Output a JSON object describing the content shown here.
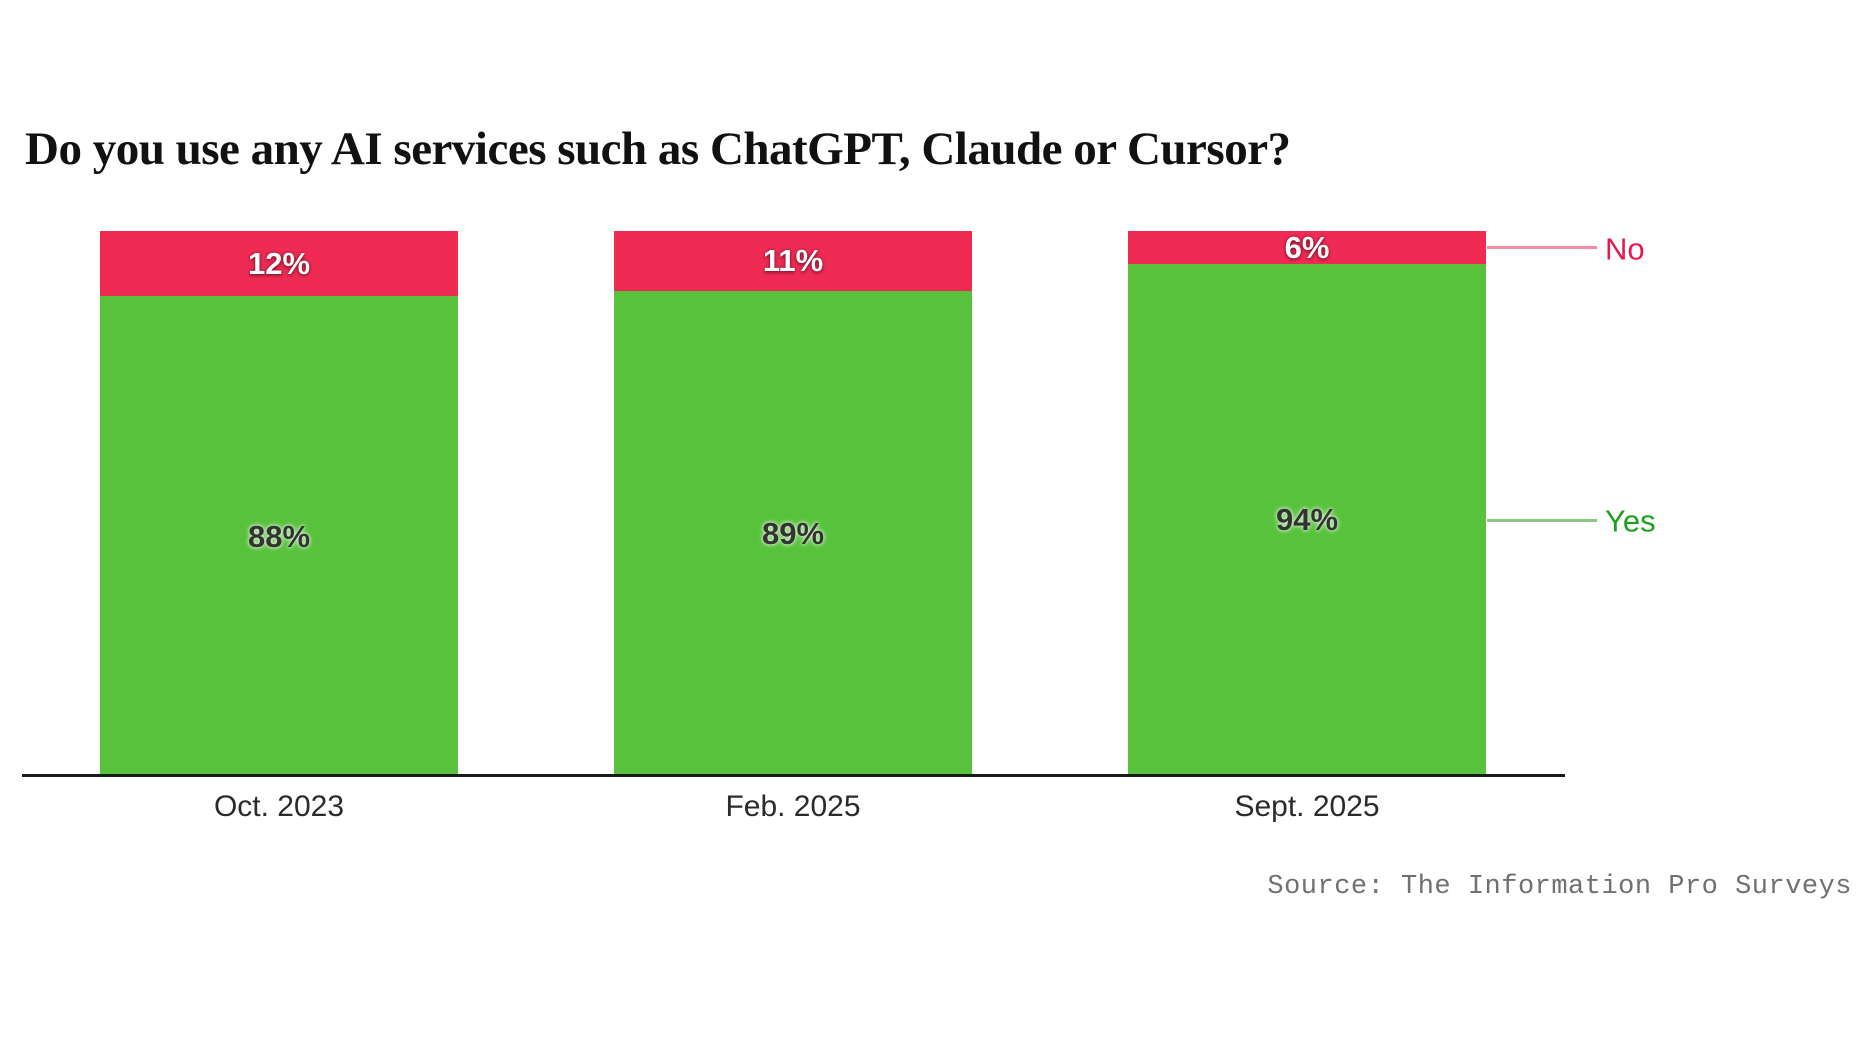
{
  "title": "Do you use any AI services such as ChatGPT, Claude or Cursor?",
  "source": "Source: The Information Pro Surveys",
  "legend": {
    "no_label": "No",
    "yes_label": "Yes"
  },
  "colors": {
    "yes_bar": "#58c23d",
    "no_bar": "#ef2b54",
    "legend_yes_text": "#1ca11c",
    "legend_no_text": "#e31b4f",
    "legend_yes_line": "#8ec584",
    "legend_no_line": "#f08fa3",
    "axis": "#1a1a1a",
    "label_on_green": "#333333",
    "label_on_red": "#ffffff",
    "x_label": "#2b2b2b",
    "source_text": "#707070"
  },
  "chart_data": {
    "type": "bar",
    "subtype": "stacked_percent",
    "title": "Do you use any AI services such as ChatGPT, Claude or Cursor?",
    "categories": [
      "Oct. 2023",
      "Feb. 2025",
      "Sept. 2025"
    ],
    "series": [
      {
        "name": "Yes",
        "values": [
          88,
          89,
          94
        ],
        "color": "#58c23d"
      },
      {
        "name": "No",
        "values": [
          12,
          11,
          6
        ],
        "color": "#ef2b54"
      }
    ],
    "value_suffix": "%",
    "ylim": [
      0,
      100
    ],
    "grid": false,
    "legend_position": "right",
    "xlabel": "",
    "ylabel": "",
    "source": "Source: The Information Pro Surveys"
  }
}
